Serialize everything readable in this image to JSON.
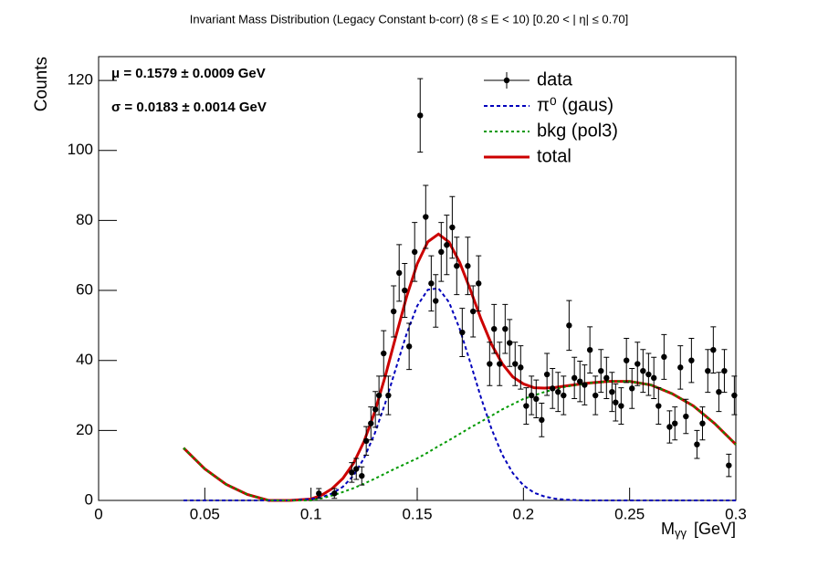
{
  "chart_data": {
    "type": "scatter",
    "title": "Invariant Mass Distribution (Legacy Constant b-corr)   (8      ≤ E < 10)   [0.20 < |  η| ≤ 0.70]",
    "ylabel": "Counts",
    "xlabel": {
      "main": "M",
      "sub": "γγ",
      "unit": "[GeV]"
    },
    "annotations": [
      "μ = 0.1579 ± 0.0009 GeV",
      "σ = 0.0183 ± 0.0014 GeV"
    ],
    "xlim": [
      0,
      0.3
    ],
    "ylim": [
      0,
      126.8
    ],
    "xticks": [
      0,
      0.05,
      0.1,
      0.15,
      0.2,
      0.25,
      0.3
    ],
    "yticks": [
      0,
      20,
      40,
      60,
      80,
      100,
      120
    ],
    "legend": "top-right",
    "curve_x": [
      0.04,
      0.05,
      0.06,
      0.07,
      0.08,
      0.09,
      0.1,
      0.105,
      0.11,
      0.115,
      0.12,
      0.125,
      0.13,
      0.135,
      0.14,
      0.145,
      0.15,
      0.155,
      0.16,
      0.165,
      0.17,
      0.175,
      0.18,
      0.185,
      0.19,
      0.195,
      0.2,
      0.205,
      0.21,
      0.215,
      0.22,
      0.23,
      0.24,
      0.25,
      0.26,
      0.27,
      0.28,
      0.29,
      0.3
    ],
    "series": [
      {
        "name": "data",
        "kind": "errorbar",
        "color": "#000000",
        "x": [
          0.1037,
          0.111,
          0.1192,
          0.1213,
          0.1239,
          0.126,
          0.1282,
          0.1303,
          0.132,
          0.1342,
          0.1364,
          0.1389,
          0.1415,
          0.1441,
          0.1462,
          0.1488,
          0.1514,
          0.154,
          0.1566,
          0.1587,
          0.1613,
          0.1639,
          0.1665,
          0.1686,
          0.1712,
          0.1738,
          0.1763,
          0.1789,
          0.1841,
          0.1862,
          0.1888,
          0.1914,
          0.1935,
          0.1961,
          0.1987,
          0.2013,
          0.2038,
          0.206,
          0.2086,
          0.2111,
          0.2137,
          0.2163,
          0.2189,
          0.2215,
          0.224,
          0.2266,
          0.2288,
          0.2313,
          0.2339,
          0.2365,
          0.2391,
          0.2417,
          0.2434,
          0.246,
          0.2485,
          0.2511,
          0.2537,
          0.2563,
          0.2589,
          0.2614,
          0.2636,
          0.2662,
          0.2688,
          0.2713,
          0.2739,
          0.2765,
          0.2791,
          0.2817,
          0.2843,
          0.2868,
          0.2894,
          0.292,
          0.2946,
          0.2967,
          0.2993
        ],
        "values": [
          2,
          2,
          8,
          9,
          7,
          17,
          22,
          26,
          30,
          42,
          30,
          54,
          65,
          60,
          44,
          71,
          110,
          81,
          62,
          57,
          71,
          73,
          78,
          67,
          48,
          67,
          54,
          62,
          39,
          49,
          39,
          49,
          45,
          39,
          38,
          27,
          30,
          29,
          23,
          36,
          32,
          31,
          30,
          50,
          35,
          34,
          33,
          43,
          30,
          37,
          35,
          31,
          28,
          27,
          40,
          32,
          39,
          37,
          36,
          35,
          27,
          41,
          21,
          22,
          38,
          24,
          40,
          16,
          22,
          37,
          43,
          31,
          37,
          10,
          30
        ],
        "errors": [
          1.4,
          1.4,
          2.8,
          3,
          2.6,
          4.1,
          4.7,
          5.1,
          5.5,
          6.5,
          5.5,
          7.3,
          8.1,
          7.7,
          6.6,
          8.4,
          10.5,
          9,
          7.9,
          7.5,
          8.4,
          8.5,
          8.8,
          8.2,
          6.9,
          8.2,
          7.3,
          7.9,
          6.2,
          7,
          6.2,
          7,
          6.7,
          6.2,
          6.2,
          5.2,
          5.5,
          5.4,
          4.8,
          6,
          5.7,
          5.6,
          5.5,
          7.1,
          5.9,
          5.8,
          5.7,
          6.6,
          5.5,
          6.1,
          5.9,
          5.6,
          5.3,
          5.2,
          6.3,
          5.7,
          6.2,
          6.1,
          6,
          5.9,
          5.2,
          6.4,
          4.6,
          4.7,
          6.2,
          4.9,
          6.3,
          4,
          4.7,
          6.1,
          6.6,
          5.6,
          6.1,
          3.2,
          5.5
        ]
      },
      {
        "name": "total",
        "kind": "line",
        "color": "#cc0000",
        "width": 3,
        "values": [
          15,
          9,
          4.6,
          1.7,
          0,
          0,
          0.4,
          1.5,
          3.4,
          6.3,
          10.6,
          16.9,
          25.3,
          35.6,
          47,
          58.2,
          67.6,
          73.9,
          76.1,
          73.8,
          68,
          60.2,
          51.9,
          44.6,
          39.1,
          35.3,
          33.3,
          32.2,
          32.1,
          32.3,
          32.7,
          33.5,
          34,
          34,
          33,
          30.5,
          27,
          22,
          16
        ]
      },
      {
        "name": "π⁰ (gaus)",
        "kind": "line",
        "color": "#0000bb",
        "width": 2,
        "dash": "4 3",
        "values": [
          0,
          0,
          0,
          0,
          0,
          0,
          0.4,
          0.9,
          2,
          3.9,
          7.1,
          12.1,
          19.1,
          27.9,
          37.8,
          47.6,
          55.6,
          60.2,
          60.6,
          56.6,
          49,
          39.4,
          29.4,
          20.4,
          13.1,
          7.8,
          4.3,
          2.2,
          1.1,
          0.5,
          0.2,
          0,
          0,
          0,
          0,
          0,
          0,
          0,
          0
        ]
      },
      {
        "name": "bkg (pol3)",
        "kind": "line",
        "color": "#009900",
        "width": 2,
        "dash": "3 3",
        "values": [
          15,
          9,
          4.6,
          1.7,
          0,
          0,
          0,
          0.6,
          1.4,
          2.4,
          3.5,
          4.8,
          6.2,
          7.7,
          9.2,
          10.6,
          12,
          13.7,
          15.5,
          17.2,
          19,
          20.8,
          22.5,
          24.2,
          26,
          27.5,
          29,
          30,
          31,
          31.8,
          32.5,
          33.5,
          34,
          34,
          33,
          30.5,
          27,
          22,
          16
        ]
      }
    ],
    "legend_order": [
      0,
      2,
      3,
      1
    ]
  }
}
